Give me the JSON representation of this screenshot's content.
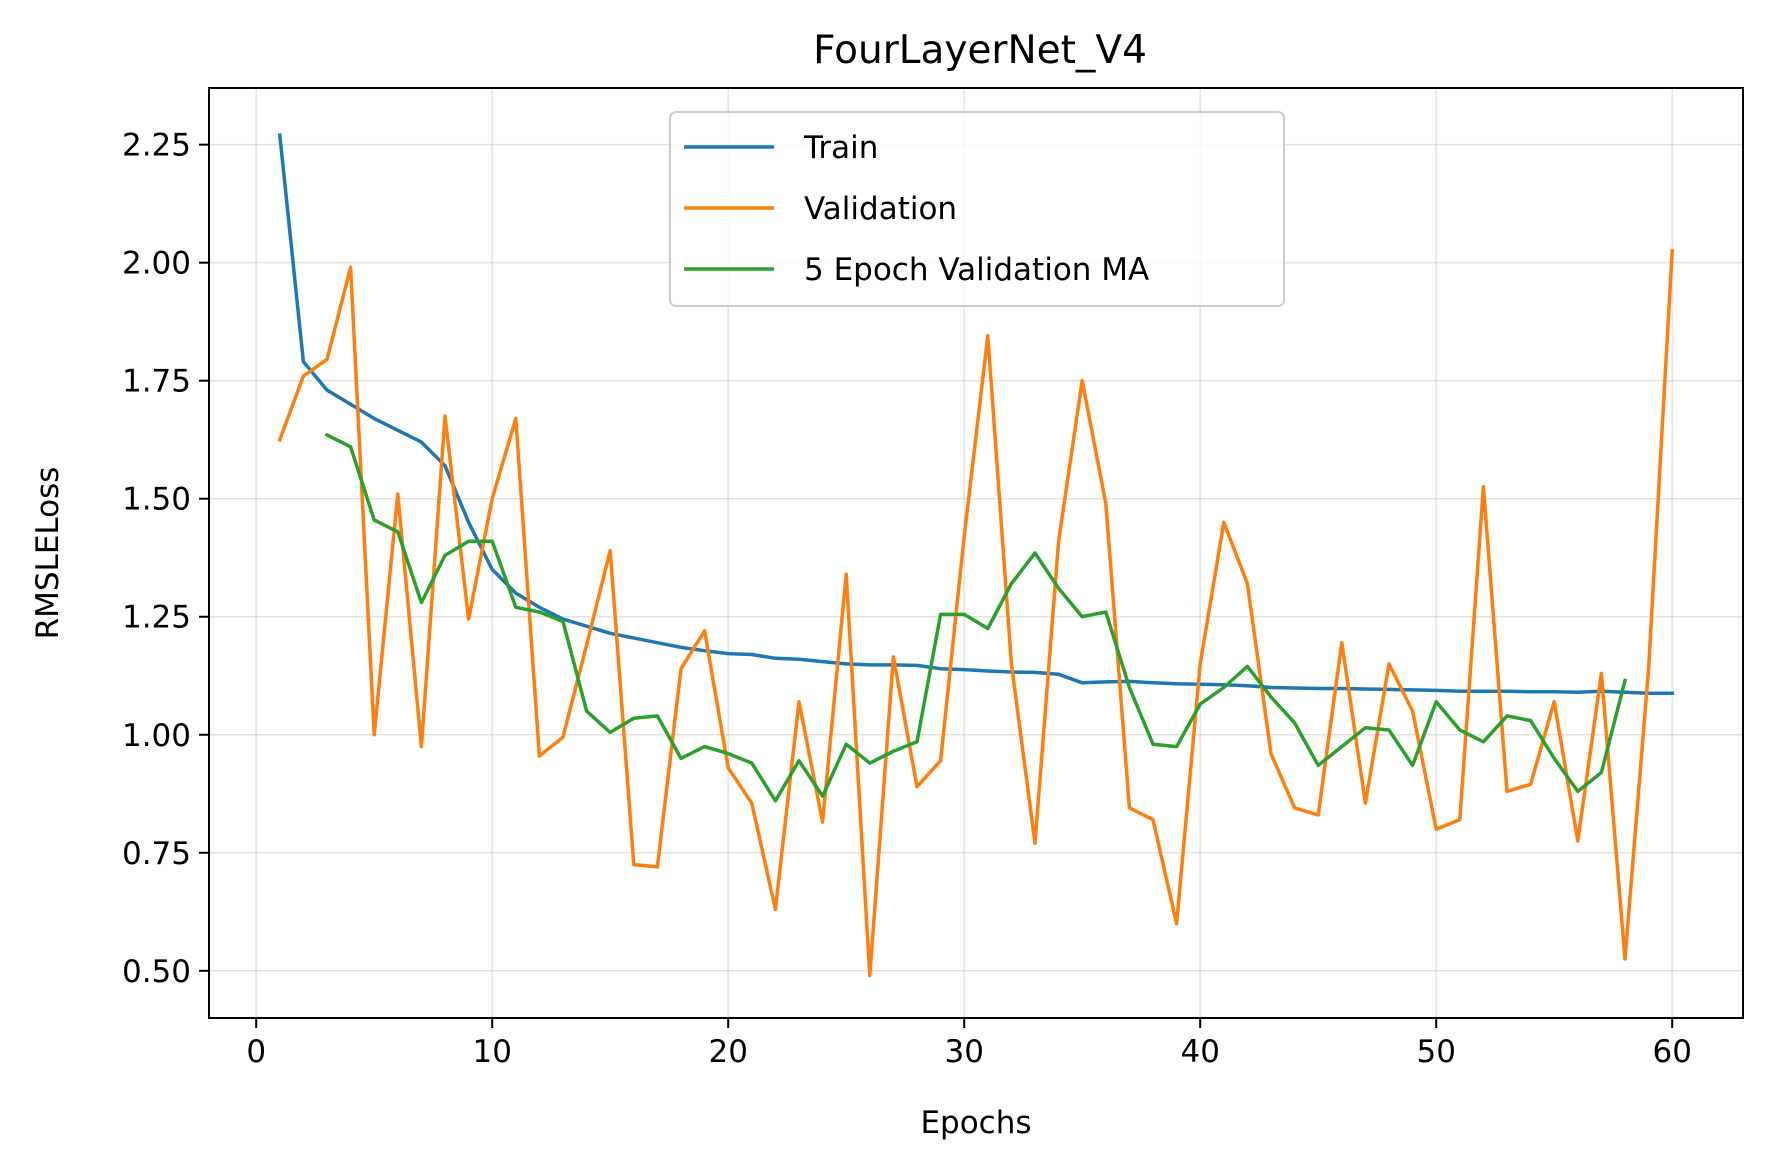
{
  "chart_data": {
    "type": "line",
    "title": "FourLayerNet_V4",
    "xlabel": "Epochs",
    "ylabel": "RMSLELoss",
    "xlim": [
      -2,
      63
    ],
    "ylim": [
      0.4,
      2.37
    ],
    "xticks": [
      0,
      10,
      20,
      30,
      40,
      50,
      60
    ],
    "xtick_labels": [
      "0",
      "10",
      "20",
      "30",
      "40",
      "50",
      "60"
    ],
    "yticks": [
      0.5,
      0.75,
      1.0,
      1.25,
      1.5,
      1.75,
      2.0,
      2.25
    ],
    "ytick_labels": [
      "0.50",
      "0.75",
      "1.00",
      "1.25",
      "1.50",
      "1.75",
      "2.00",
      "2.25"
    ],
    "grid": true,
    "legend_position": "upper-center",
    "series": [
      {
        "name": "Train",
        "color": "#1f77b4",
        "x": [
          1,
          2,
          3,
          4,
          5,
          6,
          7,
          8,
          9,
          10,
          11,
          12,
          13,
          14,
          15,
          16,
          17,
          18,
          19,
          20,
          21,
          22,
          23,
          24,
          25,
          26,
          27,
          28,
          29,
          30,
          31,
          32,
          33,
          34,
          35,
          36,
          37,
          38,
          39,
          40,
          41,
          42,
          43,
          44,
          45,
          46,
          47,
          48,
          49,
          50,
          51,
          52,
          53,
          54,
          55,
          56,
          57,
          58,
          59,
          60
        ],
        "y": [
          2.27,
          1.79,
          1.73,
          1.7,
          1.67,
          1.645,
          1.62,
          1.57,
          1.45,
          1.35,
          1.3,
          1.27,
          1.245,
          1.23,
          1.215,
          1.205,
          1.195,
          1.185,
          1.178,
          1.172,
          1.17,
          1.162,
          1.16,
          1.155,
          1.15,
          1.148,
          1.148,
          1.147,
          1.14,
          1.138,
          1.135,
          1.133,
          1.132,
          1.128,
          1.11,
          1.112,
          1.113,
          1.11,
          1.108,
          1.107,
          1.106,
          1.104,
          1.1,
          1.099,
          1.098,
          1.098,
          1.097,
          1.096,
          1.095,
          1.094,
          1.092,
          1.092,
          1.092,
          1.091,
          1.091,
          1.09,
          1.092,
          1.09,
          1.088,
          1.088
        ]
      },
      {
        "name": "Validation",
        "color": "#ff7f0e",
        "x": [
          1,
          2,
          3,
          4,
          5,
          6,
          7,
          8,
          9,
          10,
          11,
          12,
          13,
          14,
          15,
          16,
          17,
          18,
          19,
          20,
          21,
          22,
          23,
          24,
          25,
          26,
          27,
          28,
          29,
          30,
          31,
          32,
          33,
          34,
          35,
          36,
          37,
          38,
          39,
          40,
          41,
          42,
          43,
          44,
          45,
          46,
          47,
          48,
          49,
          50,
          51,
          52,
          53,
          54,
          55,
          56,
          57,
          58,
          59,
          60
        ],
        "y": [
          1.625,
          1.76,
          1.795,
          1.99,
          1.0,
          1.51,
          0.975,
          1.675,
          1.245,
          1.5,
          1.67,
          0.955,
          0.995,
          1.19,
          1.39,
          0.725,
          0.72,
          1.14,
          1.22,
          0.93,
          0.855,
          0.63,
          1.07,
          0.815,
          1.34,
          0.49,
          1.165,
          0.89,
          0.945,
          1.42,
          1.845,
          1.15,
          0.77,
          1.41,
          1.75,
          1.49,
          0.845,
          0.82,
          0.6,
          1.15,
          1.45,
          1.32,
          0.96,
          0.845,
          0.83,
          1.195,
          0.855,
          1.15,
          1.05,
          0.8,
          0.82,
          1.525,
          0.88,
          0.895,
          1.07,
          0.775,
          1.13,
          0.525,
          1.14,
          2.025
        ]
      },
      {
        "name": "5 Epoch Validation MA",
        "color": "#2ca02c",
        "x": [
          3,
          4,
          5,
          6,
          7,
          8,
          9,
          10,
          11,
          12,
          13,
          14,
          15,
          16,
          17,
          18,
          19,
          20,
          21,
          22,
          23,
          24,
          25,
          26,
          27,
          28,
          29,
          30,
          31,
          32,
          33,
          34,
          35,
          36,
          37,
          38,
          39,
          40,
          41,
          42,
          43,
          44,
          45,
          46,
          47,
          48,
          49,
          50,
          51,
          52,
          53,
          54,
          55,
          56,
          57,
          58
        ],
        "y": [
          1.635,
          1.61,
          1.455,
          1.43,
          1.28,
          1.38,
          1.41,
          1.41,
          1.27,
          1.26,
          1.24,
          1.05,
          1.005,
          1.035,
          1.04,
          0.95,
          0.975,
          0.96,
          0.94,
          0.86,
          0.945,
          0.87,
          0.98,
          0.94,
          0.965,
          0.985,
          1.255,
          1.255,
          1.225,
          1.32,
          1.385,
          1.31,
          1.25,
          1.26,
          1.1,
          0.98,
          0.975,
          1.065,
          1.1,
          1.145,
          1.08,
          1.025,
          0.935,
          0.975,
          1.015,
          1.01,
          0.935,
          1.07,
          1.01,
          0.985,
          1.04,
          1.03,
          0.95,
          0.88,
          0.92,
          1.115
        ]
      }
    ]
  }
}
